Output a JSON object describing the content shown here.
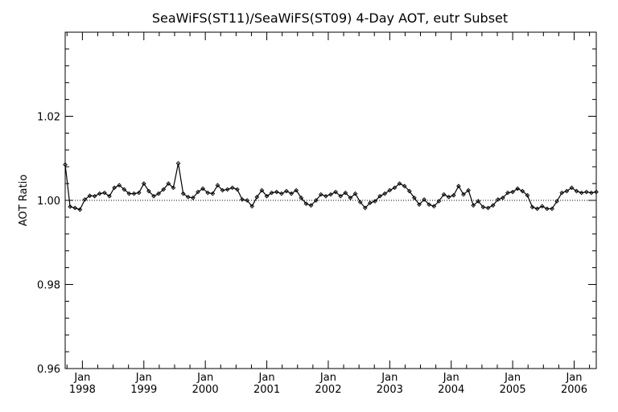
{
  "chart_data": {
    "type": "line",
    "title": "SeaWiFS(ST11)/SeaWiFS(ST09) 4-Day AOT, eutr Subset",
    "xlabel": "",
    "ylabel": "AOT Ratio",
    "xlim": [
      1997.72,
      2006.36
    ],
    "ylim": [
      0.96,
      1.04
    ],
    "y_ticks": [
      {
        "value": 0.96,
        "label": "0.96"
      },
      {
        "value": 0.98,
        "label": "0.98"
      },
      {
        "value": 1.0,
        "label": "1.00"
      },
      {
        "value": 1.02,
        "label": "1.02"
      }
    ],
    "x_ticks": [
      {
        "value": 1998,
        "month": "Jan",
        "year": "1998"
      },
      {
        "value": 1999,
        "month": "Jan",
        "year": "1999"
      },
      {
        "value": 2000,
        "month": "Jan",
        "year": "2000"
      },
      {
        "value": 2001,
        "month": "Jan",
        "year": "2001"
      },
      {
        "value": 2002,
        "month": "Jan",
        "year": "2002"
      },
      {
        "value": 2003,
        "month": "Jan",
        "year": "2003"
      },
      {
        "value": 2004,
        "month": "Jan",
        "year": "2004"
      },
      {
        "value": 2005,
        "month": "Jan",
        "year": "2005"
      },
      {
        "value": 2006,
        "month": "Jan",
        "year": "2006"
      }
    ],
    "reference_line": 1.0,
    "grid": false,
    "series": [
      {
        "x": [
          1997.72,
          1997.8,
          1997.88,
          1997.96,
          1998.04,
          1998.12,
          1998.2,
          1998.28,
          1998.36,
          1998.44,
          1998.52,
          1998.6,
          1998.68,
          1998.76,
          1998.84,
          1998.92,
          1999.0,
          1999.08,
          1999.16,
          1999.24,
          1999.32,
          1999.4,
          1999.48,
          1999.56,
          1999.64,
          1999.72,
          1999.8,
          1999.88,
          1999.96,
          2000.04,
          2000.12,
          2000.2,
          2000.28,
          2000.36,
          2000.44,
          2000.52,
          2000.6,
          2000.68,
          2000.76,
          2000.84,
          2000.92,
          2001.0,
          2001.08,
          2001.16,
          2001.24,
          2001.32,
          2001.4,
          2001.48,
          2001.56,
          2001.64,
          2001.72,
          2001.8,
          2001.88,
          2001.96,
          2002.04,
          2002.12,
          2002.2,
          2002.28,
          2002.36,
          2002.44,
          2002.52,
          2002.6,
          2002.68,
          2002.76,
          2002.84,
          2002.92,
          2003.0,
          2003.08,
          2003.16,
          2003.24,
          2003.32,
          2003.4,
          2003.48,
          2003.56,
          2003.64,
          2003.72,
          2003.8,
          2003.88,
          2003.96,
          2004.04,
          2004.12,
          2004.2,
          2004.28,
          2004.36,
          2004.44,
          2004.52,
          2004.6,
          2004.68,
          2004.76,
          2004.84,
          2004.92,
          2005.0,
          2005.08,
          2005.16,
          2005.24,
          2005.32,
          2005.4,
          2005.48,
          2005.56,
          2005.64,
          2005.72,
          2005.8,
          2005.88,
          2005.96,
          2006.04,
          2006.12,
          2006.2,
          2006.28,
          2006.36
        ],
        "y": [
          1.0085,
          0.9985,
          0.9982,
          0.9978,
          1.0002,
          1.0011,
          1.001,
          1.0016,
          1.0018,
          1.001,
          1.003,
          1.0036,
          1.0026,
          1.0016,
          1.0016,
          1.0018,
          1.004,
          1.0022,
          1.001,
          1.0016,
          1.0026,
          1.004,
          1.003,
          1.0088,
          1.0016,
          1.0008,
          1.0006,
          1.002,
          1.0028,
          1.0018,
          1.0016,
          1.0036,
          1.0024,
          1.0026,
          1.003,
          1.0026,
          1.0002,
          1.0,
          0.9986,
          1.0008,
          1.0024,
          1.001,
          1.0018,
          1.002,
          1.0016,
          1.0022,
          1.0016,
          1.0024,
          1.0006,
          0.9992,
          0.9988,
          1.0,
          1.0014,
          1.001,
          1.0014,
          1.002,
          1.001,
          1.0018,
          1.0006,
          1.0016,
          0.9996,
          0.9982,
          0.9994,
          0.9998,
          1.001,
          1.0016,
          1.0024,
          1.003,
          1.004,
          1.0034,
          1.0022,
          1.0006,
          0.999,
          1.0002,
          0.999,
          0.9986,
          0.9998,
          1.0014,
          1.0008,
          1.0012,
          1.0034,
          1.0014,
          1.0024,
          0.9988,
          0.9998,
          0.9984,
          0.9982,
          0.9988,
          1.0002,
          1.0006,
          1.0018,
          1.002,
          1.0028,
          1.0022,
          1.0012,
          0.9984,
          0.998,
          0.9986,
          0.998,
          0.998,
          0.9998,
          1.0018,
          1.0022,
          1.003,
          1.0022,
          1.0018,
          1.002,
          1.0018,
          1.002
        ]
      }
    ]
  }
}
